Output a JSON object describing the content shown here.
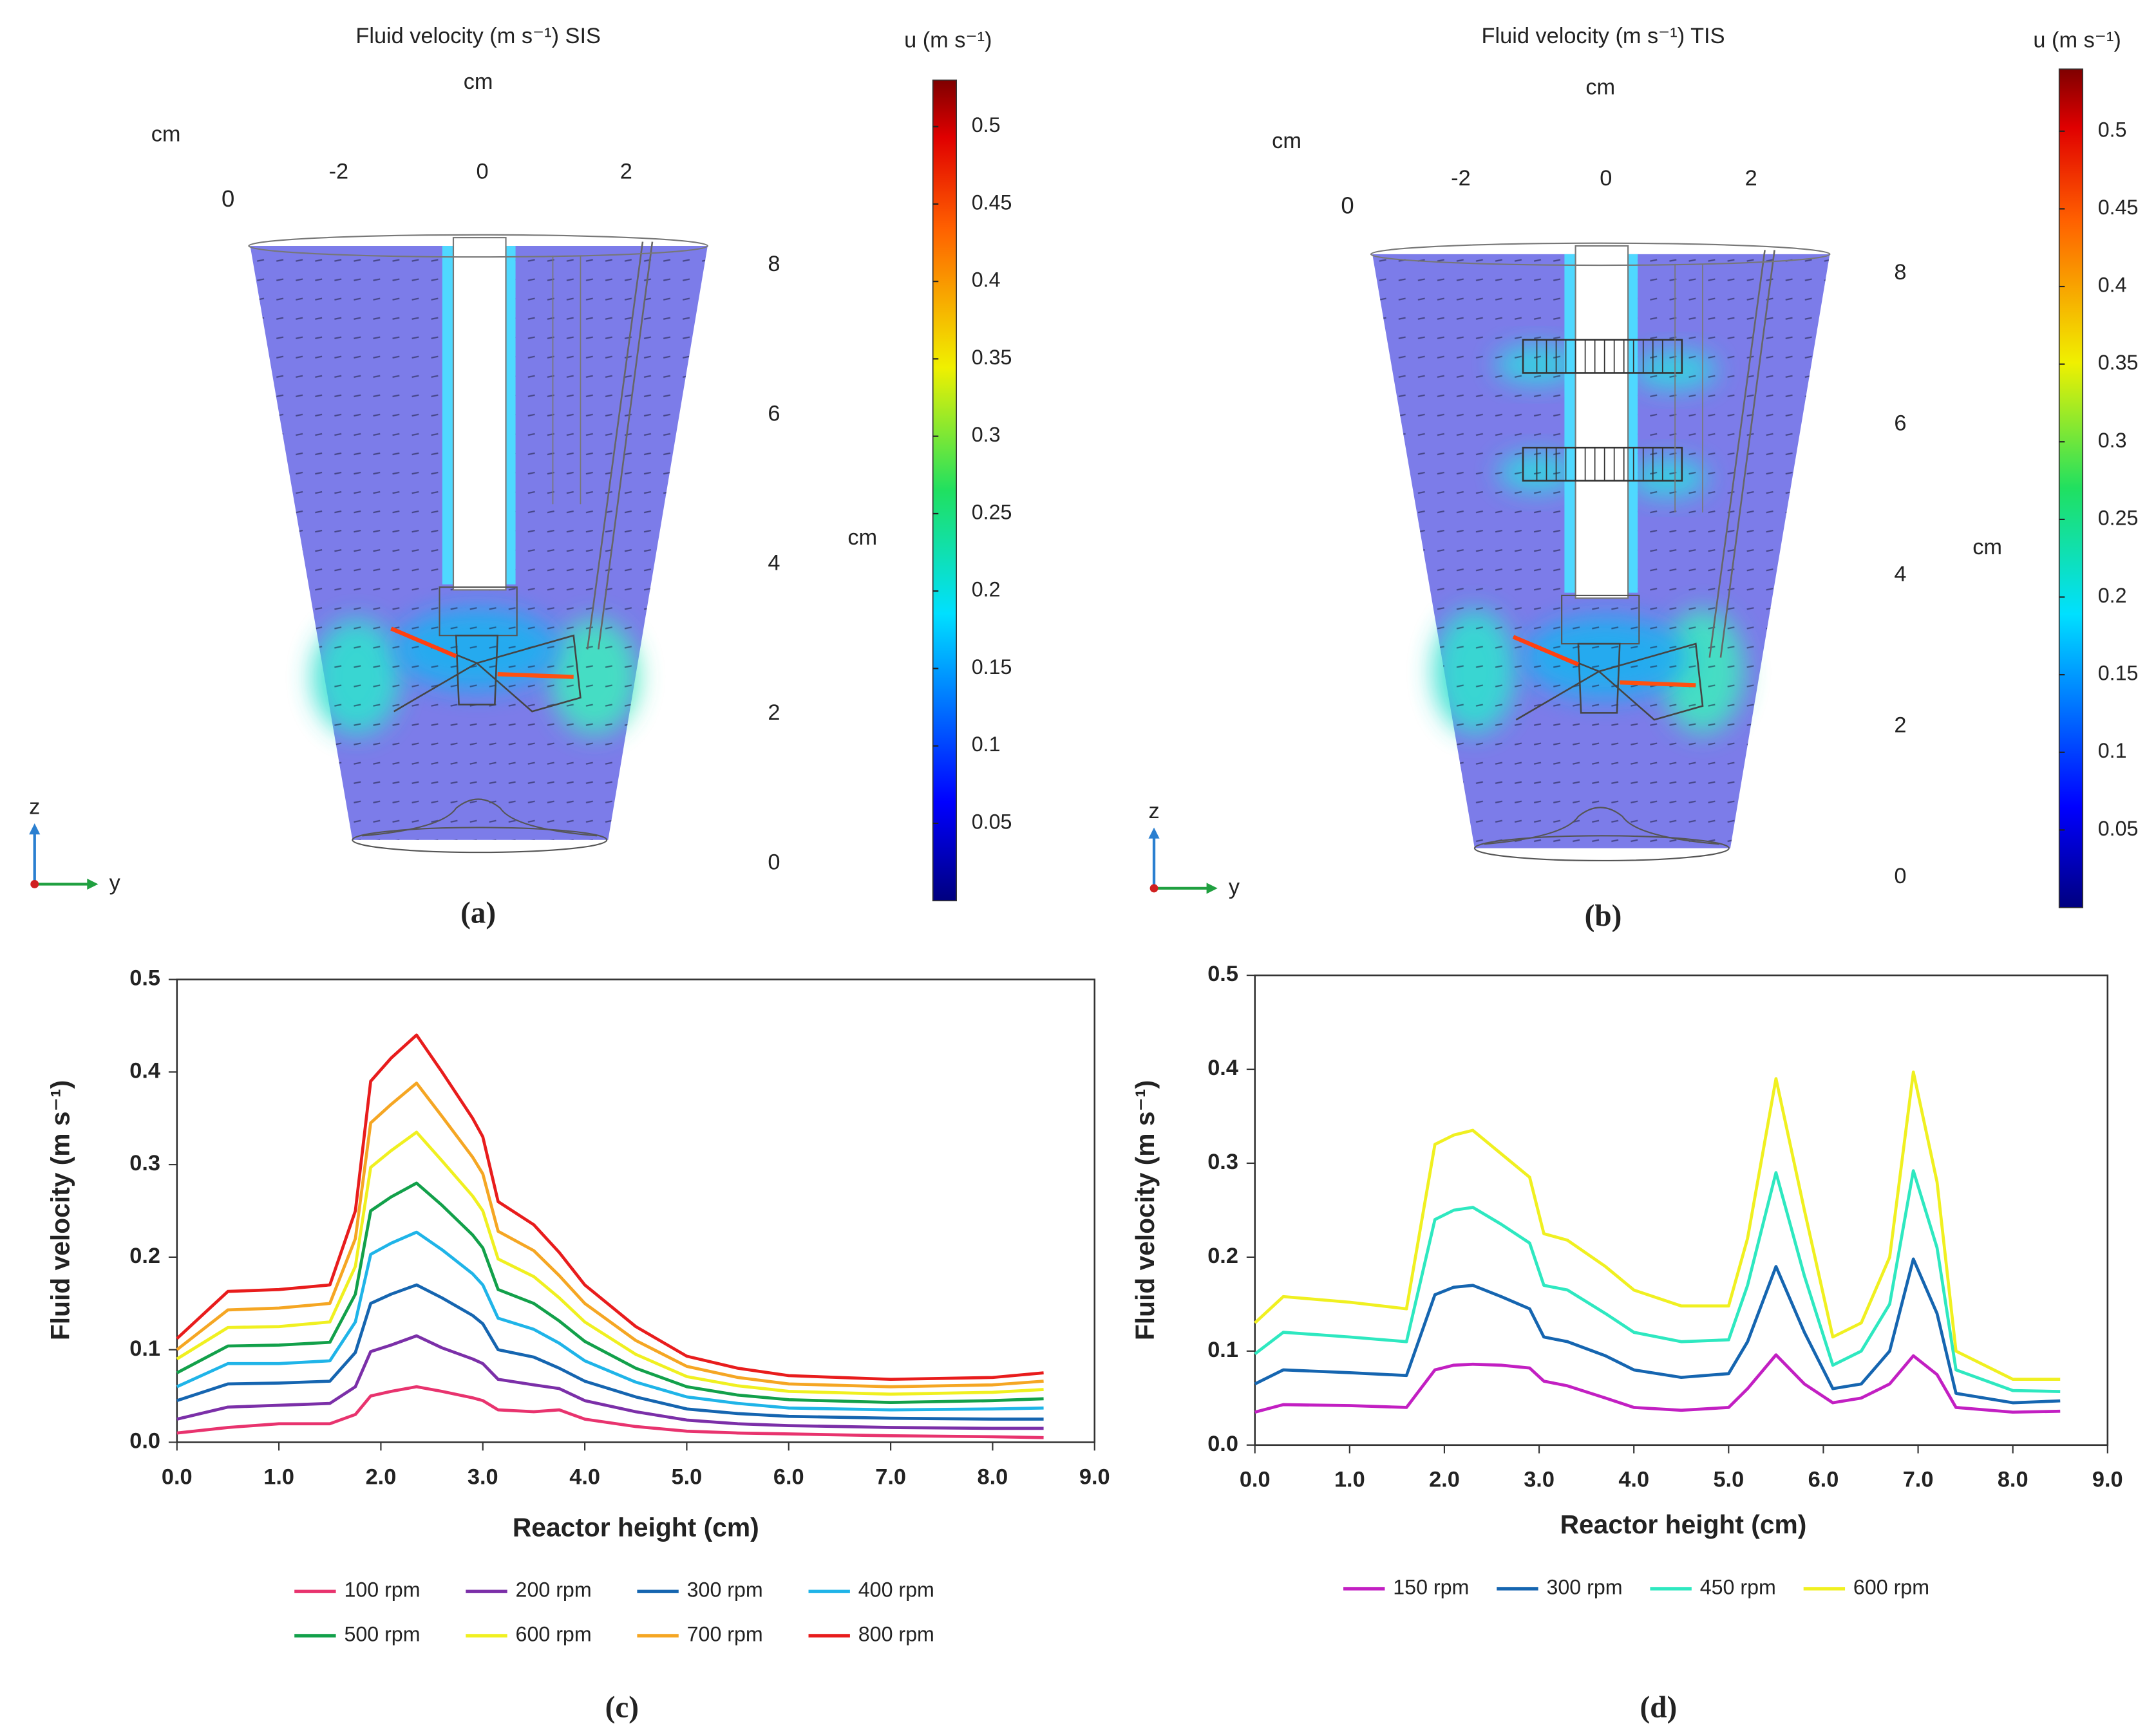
{
  "chart_data": [
    {
      "type": "field",
      "title": "Fluid velocity (m s⁻¹) SIS",
      "colorbar": {
        "label": "u (m s⁻¹)",
        "clim": [
          0,
          0.53
        ],
        "ticks": [
          0.05,
          0.1,
          0.15,
          0.2,
          0.25,
          0.3,
          0.35,
          0.4,
          0.45,
          0.5
        ]
      },
      "x_axis": {
        "label": "cm",
        "ticks": [
          0
        ]
      },
      "y_axis": {
        "label": "cm",
        "ticks": [
          -2,
          0,
          2
        ],
        "lim": [
          -2,
          2
        ]
      },
      "z_axis": {
        "label": "cm",
        "ticks": [
          0,
          2,
          4,
          6,
          8
        ],
        "lim": [
          0,
          8
        ]
      },
      "triad": [
        "z",
        "y"
      ],
      "panel_label": "(a)"
    },
    {
      "type": "field",
      "title": "Fluid velocity (m s⁻¹) TIS",
      "colorbar": {
        "label": "u (m s⁻¹)",
        "clim": [
          0,
          0.54
        ],
        "ticks": [
          0.05,
          0.1,
          0.15,
          0.2,
          0.25,
          0.3,
          0.35,
          0.4,
          0.45,
          0.5
        ]
      },
      "x_axis": {
        "label": "cm",
        "ticks": [
          0
        ]
      },
      "y_axis": {
        "label": "cm",
        "ticks": [
          -2,
          0,
          2
        ],
        "lim": [
          -2,
          2
        ]
      },
      "z_axis": {
        "label": "cm",
        "ticks": [
          0,
          2,
          4,
          6,
          8
        ],
        "lim": [
          0,
          8
        ]
      },
      "triad": [
        "z",
        "y"
      ],
      "panel_label": "(b)"
    },
    {
      "type": "line",
      "panel_label": "(c)",
      "xlabel": "Reactor height (cm)",
      "ylabel": "Fluid velocity (m s⁻¹)",
      "xlim": [
        0,
        9
      ],
      "ylim": [
        0,
        0.5
      ],
      "legend": "bottom",
      "xticks": [
        {
          "value": 0,
          "label": "0.0"
        },
        {
          "value": 1,
          "label": "1.0"
        },
        {
          "value": 2,
          "label": "2.0"
        },
        {
          "value": 3,
          "label": "3.0"
        },
        {
          "value": 4,
          "label": "4.0"
        },
        {
          "value": 5,
          "label": "5.0"
        },
        {
          "value": 6,
          "label": "6.0"
        },
        {
          "value": 7,
          "label": "7.0"
        },
        {
          "value": 8,
          "label": "8.0"
        },
        {
          "value": 9,
          "label": "9.0"
        }
      ],
      "yticks": [
        {
          "value": 0,
          "label": "0.0"
        },
        0.1,
        0.2,
        0.3,
        0.4,
        0.5
      ],
      "x": [
        0,
        0.5,
        1,
        1.5,
        1.75,
        1.9,
        2.1,
        2.35,
        2.6,
        2.9,
        3.0,
        3.15,
        3.5,
        3.75,
        4,
        4.5,
        5,
        5.5,
        6,
        7,
        8,
        8.5
      ],
      "series": [
        {
          "name": "100 rpm",
          "color": "#e8336e",
          "values": [
            0.01,
            0.016,
            0.02,
            0.02,
            0.03,
            0.05,
            0.055,
            0.06,
            0.055,
            0.048,
            0.045,
            0.035,
            0.033,
            0.035,
            0.025,
            0.017,
            0.012,
            0.01,
            0.009,
            0.007,
            0.006,
            0.005
          ]
        },
        {
          "name": "200 rpm",
          "color": "#7b2fa8",
          "values": [
            0.025,
            0.038,
            0.04,
            0.042,
            0.06,
            0.098,
            0.105,
            0.115,
            0.102,
            0.09,
            0.085,
            0.068,
            0.062,
            0.058,
            0.045,
            0.033,
            0.024,
            0.02,
            0.018,
            0.016,
            0.015,
            0.015
          ]
        },
        {
          "name": "300 rpm",
          "color": "#1565b0",
          "values": [
            0.045,
            0.063,
            0.064,
            0.066,
            0.097,
            0.15,
            0.16,
            0.17,
            0.156,
            0.137,
            0.128,
            0.1,
            0.092,
            0.08,
            0.066,
            0.049,
            0.036,
            0.031,
            0.028,
            0.026,
            0.025,
            0.025
          ]
        },
        {
          "name": "400 rpm",
          "color": "#1fb4e8",
          "values": [
            0.06,
            0.085,
            0.085,
            0.088,
            0.13,
            0.203,
            0.215,
            0.227,
            0.208,
            0.182,
            0.17,
            0.134,
            0.122,
            0.107,
            0.088,
            0.065,
            0.049,
            0.042,
            0.037,
            0.035,
            0.036,
            0.037
          ]
        },
        {
          "name": "500 rpm",
          "color": "#12a04a",
          "values": [
            0.075,
            0.104,
            0.105,
            0.108,
            0.16,
            0.25,
            0.265,
            0.28,
            0.256,
            0.224,
            0.21,
            0.165,
            0.15,
            0.131,
            0.109,
            0.08,
            0.06,
            0.051,
            0.046,
            0.043,
            0.045,
            0.047
          ]
        },
        {
          "name": "600 rpm",
          "color": "#f0f020",
          "values": [
            0.09,
            0.124,
            0.125,
            0.13,
            0.19,
            0.297,
            0.315,
            0.335,
            0.304,
            0.266,
            0.25,
            0.198,
            0.179,
            0.156,
            0.13,
            0.095,
            0.071,
            0.061,
            0.055,
            0.052,
            0.054,
            0.057
          ]
        },
        {
          "name": "700 rpm",
          "color": "#f5a623",
          "values": [
            0.1,
            0.143,
            0.145,
            0.15,
            0.22,
            0.345,
            0.365,
            0.388,
            0.352,
            0.308,
            0.29,
            0.228,
            0.207,
            0.18,
            0.15,
            0.11,
            0.082,
            0.07,
            0.063,
            0.06,
            0.062,
            0.066
          ]
        },
        {
          "name": "800 rpm",
          "color": "#e81c1c",
          "values": [
            0.112,
            0.163,
            0.165,
            0.17,
            0.25,
            0.39,
            0.415,
            0.44,
            0.4,
            0.35,
            0.33,
            0.26,
            0.235,
            0.205,
            0.17,
            0.125,
            0.093,
            0.08,
            0.072,
            0.068,
            0.07,
            0.075
          ]
        }
      ]
    },
    {
      "type": "line",
      "panel_label": "(d)",
      "xlabel": "Reactor height (cm)",
      "ylabel": "Fluid velocity (m s⁻¹)",
      "xlim": [
        0,
        9
      ],
      "ylim": [
        0,
        0.5
      ],
      "legend": "bottom",
      "xticks": [
        {
          "value": 0,
          "label": "0.0"
        },
        {
          "value": 1,
          "label": "1.0"
        },
        {
          "value": 2,
          "label": "2.0"
        },
        {
          "value": 3,
          "label": "3.0"
        },
        {
          "value": 4,
          "label": "4.0"
        },
        {
          "value": 5,
          "label": "5.0"
        },
        {
          "value": 6,
          "label": "6.0"
        },
        {
          "value": 7,
          "label": "7.0"
        },
        {
          "value": 8,
          "label": "8.0"
        },
        {
          "value": 9,
          "label": "9.0"
        }
      ],
      "yticks": [
        {
          "value": 0,
          "label": "0.0"
        },
        0.1,
        0.2,
        0.3,
        0.4,
        0.5
      ],
      "x": [
        0,
        0.3,
        1,
        1.6,
        1.9,
        2.1,
        2.3,
        2.6,
        2.9,
        3.05,
        3.3,
        3.7,
        4,
        4.5,
        5,
        5.2,
        5.5,
        5.8,
        6.1,
        6.4,
        6.7,
        6.95,
        7.2,
        7.4,
        8,
        8.5
      ],
      "series": [
        {
          "name": "150 rpm",
          "color": "#c21fc2",
          "values": [
            0.035,
            0.043,
            0.042,
            0.04,
            0.08,
            0.085,
            0.086,
            0.085,
            0.082,
            0.068,
            0.063,
            0.05,
            0.04,
            0.037,
            0.04,
            0.06,
            0.096,
            0.065,
            0.045,
            0.05,
            0.065,
            0.095,
            0.075,
            0.04,
            0.035,
            0.036
          ]
        },
        {
          "name": "300 rpm",
          "color": "#1565b0",
          "values": [
            0.065,
            0.08,
            0.077,
            0.074,
            0.16,
            0.168,
            0.17,
            0.158,
            0.145,
            0.115,
            0.11,
            0.095,
            0.08,
            0.072,
            0.076,
            0.11,
            0.19,
            0.12,
            0.06,
            0.065,
            0.1,
            0.198,
            0.14,
            0.055,
            0.045,
            0.047
          ]
        },
        {
          "name": "450 rpm",
          "color": "#2ee8c0",
          "values": [
            0.097,
            0.12,
            0.115,
            0.11,
            0.24,
            0.25,
            0.253,
            0.235,
            0.215,
            0.17,
            0.165,
            0.14,
            0.12,
            0.11,
            0.112,
            0.17,
            0.29,
            0.18,
            0.085,
            0.1,
            0.15,
            0.292,
            0.21,
            0.08,
            0.058,
            0.057
          ]
        },
        {
          "name": "600 rpm",
          "color": "#f0f020",
          "values": [
            0.13,
            0.158,
            0.152,
            0.145,
            0.32,
            0.33,
            0.335,
            0.31,
            0.285,
            0.225,
            0.218,
            0.19,
            0.165,
            0.148,
            0.148,
            0.22,
            0.39,
            0.25,
            0.115,
            0.13,
            0.2,
            0.397,
            0.28,
            0.1,
            0.07,
            0.07
          ]
        }
      ]
    }
  ]
}
